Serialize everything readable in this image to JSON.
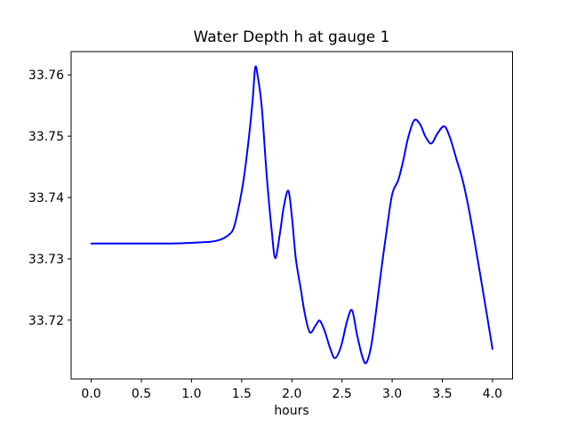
{
  "chart_data": {
    "type": "line",
    "title": "Water Depth h at gauge 1",
    "xlabel": "hours",
    "ylabel": "",
    "xlim": [
      -0.2,
      4.2
    ],
    "ylim": [
      33.7104,
      33.7638
    ],
    "xticks": [
      "0.0",
      "0.5",
      "1.0",
      "1.5",
      "2.0",
      "2.5",
      "3.0",
      "3.5",
      "4.0"
    ],
    "yticks": [
      "33.72",
      "33.73",
      "33.74",
      "33.75",
      "33.76"
    ],
    "grid": false,
    "legend": false,
    "series": [
      {
        "color": "#0000ff",
        "x": [
          0.0,
          0.2,
          0.4,
          0.6,
          0.8,
          1.0,
          1.1,
          1.2,
          1.3,
          1.37,
          1.42,
          1.47,
          1.52,
          1.57,
          1.61,
          1.635,
          1.66,
          1.7,
          1.75,
          1.8,
          1.835,
          1.88,
          1.92,
          1.965,
          2.0,
          2.04,
          2.09,
          2.13,
          2.18,
          2.24,
          2.28,
          2.33,
          2.38,
          2.43,
          2.49,
          2.55,
          2.6,
          2.65,
          2.7,
          2.74,
          2.79,
          2.84,
          2.89,
          2.94,
          3.0,
          3.06,
          3.11,
          3.16,
          3.22,
          3.28,
          3.33,
          3.39,
          3.45,
          3.52,
          3.58,
          3.64,
          3.7,
          3.76,
          3.82,
          3.88,
          3.94,
          4.0
        ],
        "y": [
          33.7325,
          33.7325,
          33.7325,
          33.7325,
          33.7325,
          33.7326,
          33.7327,
          33.7328,
          33.7332,
          33.7339,
          33.735,
          33.7384,
          33.743,
          33.7495,
          33.756,
          33.7612,
          33.7598,
          33.7548,
          33.7435,
          33.7345,
          33.7301,
          33.734,
          33.7385,
          33.7411,
          33.737,
          33.73,
          33.725,
          33.721,
          33.718,
          33.7192,
          33.7199,
          33.7181,
          33.7155,
          33.7138,
          33.7157,
          33.7198,
          33.7216,
          33.7176,
          33.7142,
          33.713,
          33.7157,
          33.7215,
          33.728,
          33.734,
          33.7405,
          33.7428,
          33.746,
          33.7498,
          33.7526,
          33.7519,
          33.75,
          33.7488,
          33.7504,
          33.7516,
          33.7496,
          33.7463,
          33.743,
          33.7385,
          33.733,
          33.7272,
          33.7213,
          33.7153
        ]
      }
    ]
  }
}
